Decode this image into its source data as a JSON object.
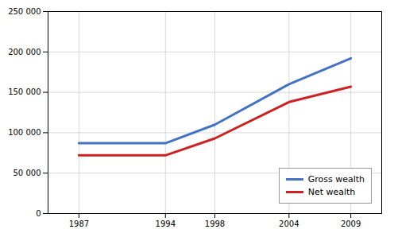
{
  "chart_data": {
    "type": "line",
    "x": [
      1987,
      1994,
      1998,
      2004,
      2009
    ],
    "series": [
      {
        "name": "Gross wealth",
        "color": "#4472C4",
        "values": [
          87000,
          87000,
          110000,
          160000,
          192000
        ]
      },
      {
        "name": "Net wealth",
        "color": "#CC2222",
        "values": [
          72000,
          72000,
          93000,
          138000,
          157000
        ]
      }
    ],
    "xlim": [
      1984.5,
      2011.5
    ],
    "xticks": [
      1987,
      1994,
      1998,
      2004,
      2009
    ],
    "ylim": [
      0,
      250000
    ],
    "yticks": [
      0,
      {
        "value": 50000,
        "label": "50 000"
      },
      {
        "value": 100000,
        "label": "100 000"
      },
      {
        "value": 150000,
        "label": "150 000"
      },
      {
        "value": 200000,
        "label": "200 000"
      },
      {
        "value": 250000,
        "label": "250 000"
      }
    ],
    "grid": true,
    "legend": "lower right"
  }
}
